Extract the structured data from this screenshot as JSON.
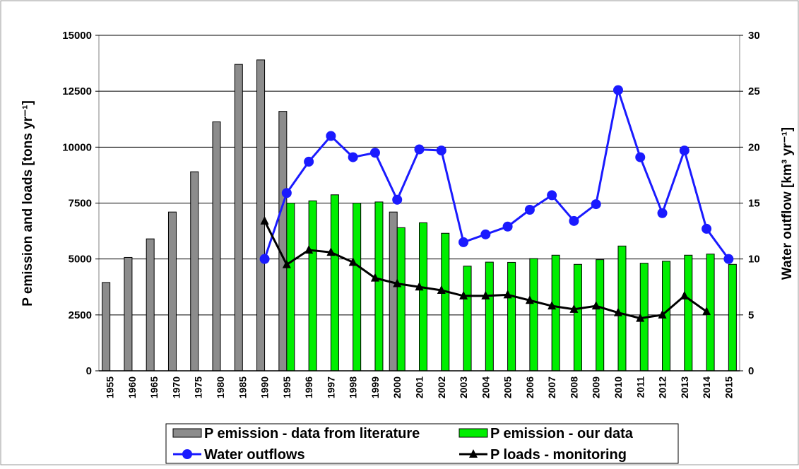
{
  "chart_data": {
    "type": "bar-line",
    "y_label": "P emission and loads [tons yr⁻¹]",
    "y2_label": "Water outflow [km³ yr⁻¹]",
    "categories": [
      "1955",
      "1960",
      "1965",
      "1970",
      "1975",
      "1980",
      "1985",
      "1990",
      "1995",
      "1996",
      "1997",
      "1998",
      "1999",
      "2000",
      "2001",
      "2002",
      "2003",
      "2004",
      "2005",
      "2006",
      "2007",
      "2008",
      "2009",
      "2010",
      "2011",
      "2012",
      "2013",
      "2014",
      "2015"
    ],
    "ylim": [
      0,
      15000
    ],
    "yticks": [
      0,
      2500,
      5000,
      7500,
      10000,
      12500,
      15000
    ],
    "y2lim": [
      0,
      30
    ],
    "y2ticks": [
      0,
      5,
      10,
      15,
      20,
      25,
      30
    ],
    "grid": true,
    "series": [
      {
        "name": "P emission - data from literature",
        "kind": "bar",
        "color": "#8c8c8c",
        "values": [
          3950,
          5070,
          5900,
          7100,
          8900,
          11130,
          13700,
          13900,
          11600,
          null,
          null,
          null,
          null,
          7100,
          null,
          null,
          null,
          null,
          null,
          null,
          null,
          null,
          null,
          null,
          null,
          null,
          null,
          null,
          null
        ]
      },
      {
        "name": "P emission - our data",
        "kind": "bar",
        "color": "#00ee00",
        "values": [
          null,
          null,
          null,
          null,
          null,
          null,
          null,
          null,
          7500,
          7600,
          7870,
          7500,
          7550,
          6400,
          6620,
          6150,
          4680,
          4860,
          4850,
          5020,
          5170,
          4760,
          4970,
          5580,
          4810,
          4900,
          5170,
          5220,
          4760
        ]
      },
      {
        "name": "Water outflows",
        "kind": "line",
        "marker": "circle",
        "axis": "y2",
        "color": "#1a1aff",
        "values": [
          null,
          null,
          null,
          null,
          null,
          null,
          null,
          10,
          15.9,
          18.7,
          21.0,
          19.1,
          19.5,
          15.3,
          19.8,
          19.7,
          11.5,
          12.2,
          12.9,
          14.4,
          15.7,
          13.4,
          14.9,
          25.1,
          19.1,
          14.1,
          19.7,
          12.7,
          10
        ]
      },
      {
        "name": "P loads - monitoring",
        "kind": "line",
        "marker": "triangle",
        "color": "#000000",
        "values": [
          null,
          null,
          null,
          null,
          null,
          null,
          null,
          6700,
          4750,
          5400,
          5300,
          4850,
          4150,
          3900,
          3750,
          3600,
          3350,
          3350,
          3400,
          3150,
          2900,
          2750,
          2900,
          2600,
          2350,
          2500,
          3350,
          2650,
          null
        ]
      }
    ]
  }
}
